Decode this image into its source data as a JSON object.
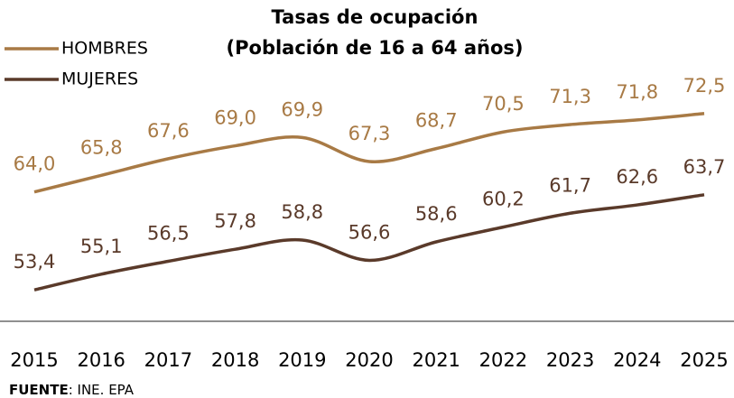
{
  "chart_data": {
    "type": "line",
    "title": "Tasas de ocupación",
    "subtitle": "(Población de 16 a 64 años)",
    "categories": [
      "2015",
      "2016",
      "2017",
      "2018",
      "2019",
      "2020",
      "2021",
      "2022",
      "2023",
      "2024",
      "2025"
    ],
    "series": [
      {
        "name": "HOMBRES",
        "color": "#a87a45",
        "values": [
          64.0,
          65.8,
          67.6,
          69.0,
          69.9,
          67.3,
          68.7,
          70.5,
          71.3,
          71.8,
          72.5
        ],
        "value_labels": [
          "64,0",
          "65,8",
          "67,6",
          "69,0",
          "69,9",
          "67,3",
          "68,7",
          "70,5",
          "71,3",
          "71,8",
          "72,5"
        ]
      },
      {
        "name": "MUJERES",
        "color": "#5a3a2a",
        "values": [
          53.4,
          55.1,
          56.5,
          57.8,
          58.8,
          56.6,
          58.6,
          60.2,
          61.7,
          62.6,
          63.7
        ],
        "value_labels": [
          "53,4",
          "55,1",
          "56,5",
          "57,8",
          "58,8",
          "56,6",
          "58,6",
          "60,2",
          "61,7",
          "62,6",
          "63,7"
        ]
      }
    ],
    "ylim": [
      50,
      80
    ],
    "legend": "top-left",
    "source": {
      "label": "FUENTE",
      "text": ": INE. EPA"
    }
  }
}
